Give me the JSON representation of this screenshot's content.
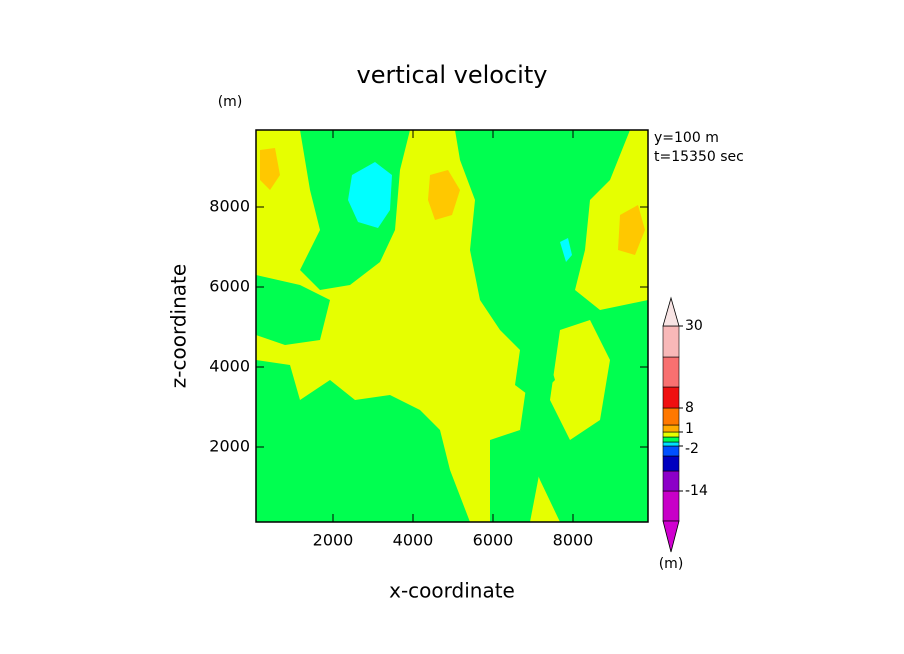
{
  "chart_data": {
    "type": "contour",
    "title": "vertical velocity",
    "x_label": "x-coordinate",
    "y_label": "z-coordinate",
    "y_unit": "(m)",
    "annotations": [
      "y=100 m",
      "t=15350 sec"
    ],
    "xlim": [
      75,
      9875
    ],
    "ylim": [
      125,
      9925
    ],
    "xticks": [
      2000,
      4000,
      6000,
      8000
    ],
    "yticks": [
      2000,
      4000,
      6000,
      8000
    ],
    "colorbar": {
      "colors": [
        "#c800c8",
        "#8c00c8",
        "#0000c0",
        "#0050ff",
        "#00e0ff",
        "#00ff50",
        "#e6ff00",
        "#ffaa00",
        "#ff7800",
        "#f01010",
        "#f87070",
        "#f8b8b8"
      ],
      "under_color": "#d000d0",
      "over_color": "#f8e4e4",
      "ticks": [
        -14,
        -2,
        1,
        8,
        30
      ],
      "unit": "(m)"
    }
  }
}
